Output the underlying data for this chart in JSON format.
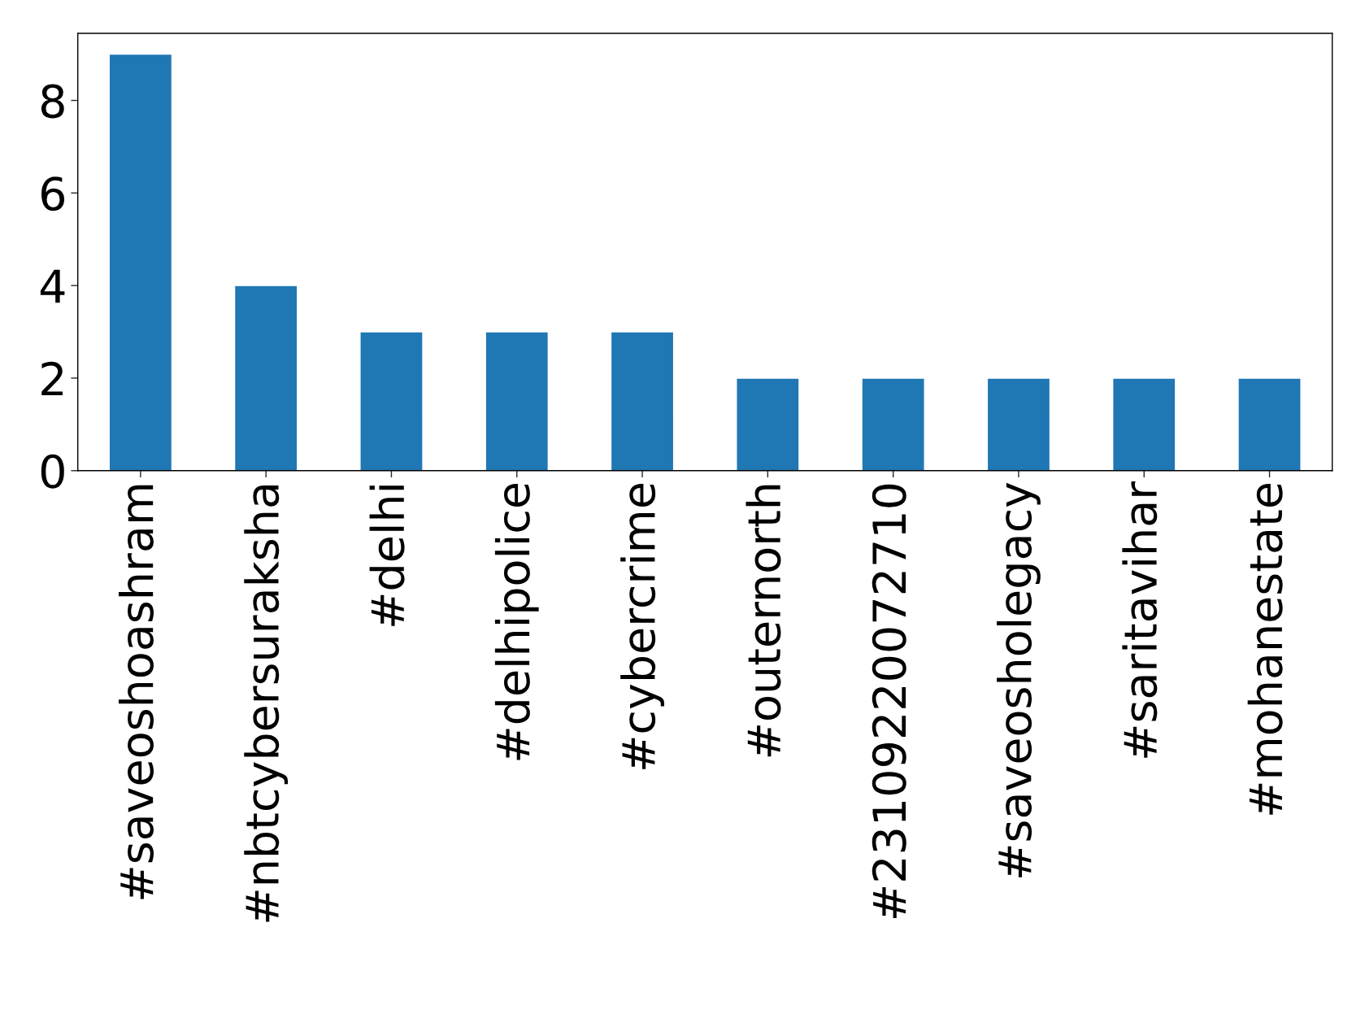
{
  "chart_data": {
    "type": "bar",
    "categories": [
      "#saveoshoashram",
      "#nbtcybersuraksha",
      "#delhi",
      "#delhipolice",
      "#cybercrime",
      "#outernorth",
      "#23109220072710",
      "#saveosholegacy",
      "#saritavihar",
      "#mohanestate"
    ],
    "values": [
      9,
      4,
      3,
      3,
      3,
      2,
      2,
      2,
      2,
      2
    ],
    "color": "#1f77b4",
    "ylim": [
      0,
      9.45
    ],
    "yticks": [
      0,
      2,
      4,
      6,
      8
    ],
    "grid": false,
    "legend": false
  }
}
